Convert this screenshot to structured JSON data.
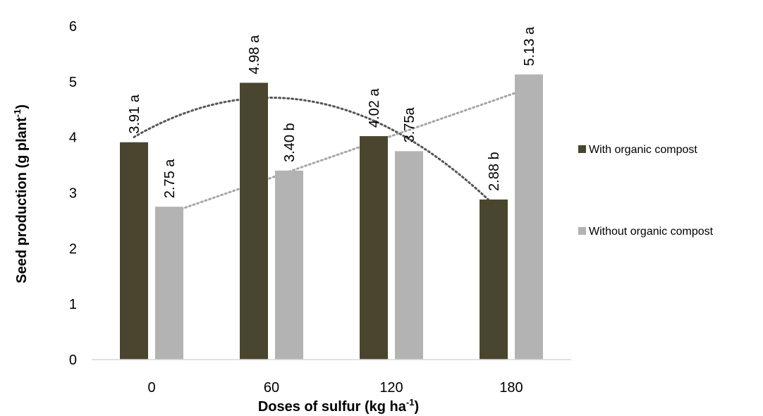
{
  "chart_data": {
    "type": "bar",
    "title": "",
    "xlabel": "Doses of sulfur (kg ha",
    "xlabel_sup": "-1",
    "xlabel_end": ")",
    "ylabel": "Seed production (g plant",
    "ylabel_sup": "-1",
    "ylabel_end": ")",
    "categories": [
      "0",
      "60",
      "120",
      "180"
    ],
    "ylim": [
      0,
      6
    ],
    "yticks": [
      "0",
      "1",
      "2",
      "3",
      "4",
      "5",
      "6"
    ],
    "grid": false,
    "legend_position": "right",
    "series": [
      {
        "name": "With organic compost",
        "color": "#4a452e",
        "values": [
          3.91,
          4.98,
          4.02,
          2.88
        ],
        "labels": [
          "3.91 a",
          "4.98 a",
          "4.02 a",
          "2.88 b"
        ],
        "trendline": "polynomial",
        "trend_color": "#555555"
      },
      {
        "name": "Without organic compost",
        "color": "#b3b3b3",
        "values": [
          2.75,
          3.4,
          3.75,
          5.13
        ],
        "labels": [
          "2.75 a",
          "3.40 b",
          "3.75a",
          "5.13 a"
        ],
        "trendline": "linear",
        "trend_color": "#a6a6a6"
      }
    ]
  }
}
